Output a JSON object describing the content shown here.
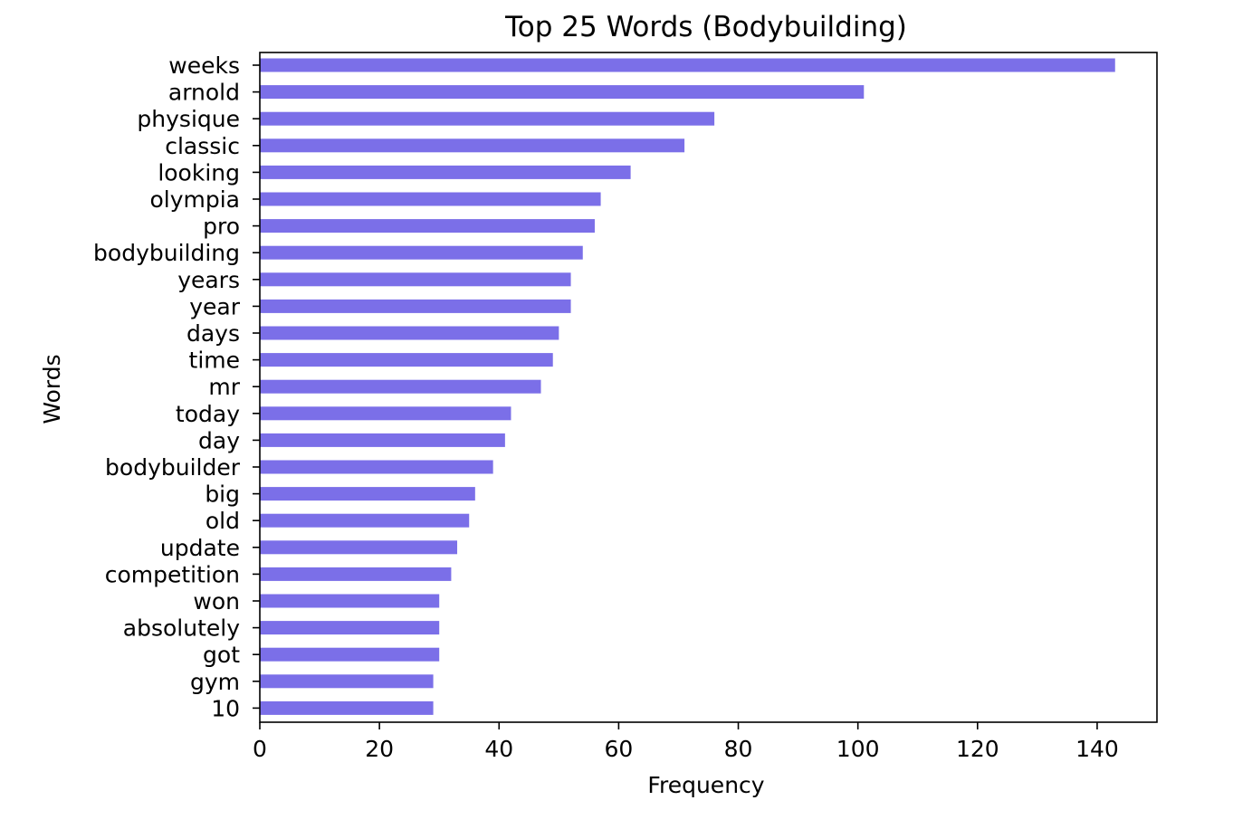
{
  "chart_data": {
    "type": "bar",
    "orientation": "horizontal",
    "title": "Top 25 Words (Bodybuilding)",
    "xlabel": "Frequency",
    "ylabel": "Words",
    "xlim": [
      0,
      150
    ],
    "xticks": [
      "0",
      "20",
      "40",
      "60",
      "80",
      "100",
      "120",
      "140"
    ],
    "grid": false,
    "bar_color": "#7b6fe8",
    "categories": [
      "weeks",
      "arnold",
      "physique",
      "classic",
      "looking",
      "olympia",
      "pro",
      "bodybuilding",
      "years",
      "year",
      "days",
      "time",
      "mr",
      "today",
      "day",
      "bodybuilder",
      "big",
      "old",
      "update",
      "competition",
      "won",
      "absolutely",
      "got",
      "gym",
      "10"
    ],
    "values": [
      143,
      101,
      76,
      71,
      62,
      57,
      56,
      54,
      52,
      52,
      50,
      49,
      47,
      42,
      41,
      39,
      36,
      35,
      33,
      32,
      30,
      30,
      30,
      29,
      29
    ]
  }
}
